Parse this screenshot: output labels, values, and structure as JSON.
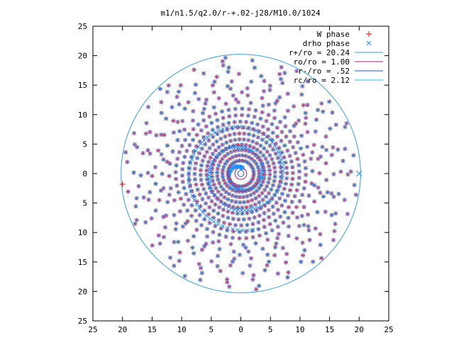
{
  "chart_data": {
    "type": "scatter",
    "title": "m1/n1.5/q2.0/r-+.02-j28/M10.0/1024",
    "xlabel": "",
    "ylabel": "",
    "xlim": [
      -25,
      25
    ],
    "ylim": [
      -25,
      25
    ],
    "x_tick_values": [
      -25,
      -20,
      -15,
      -10,
      -5,
      0,
      5,
      10,
      15,
      20,
      25
    ],
    "x_tick_labels": [
      "25",
      "20",
      "15",
      "10",
      "5",
      "0",
      "5",
      "10",
      "15",
      "20",
      "25"
    ],
    "y_tick_values": [
      25,
      20,
      15,
      10,
      5,
      0,
      -5,
      -10,
      -15,
      -20,
      -25
    ],
    "y_tick_labels": [
      "25",
      "20",
      "15",
      "10",
      "5",
      "0",
      "5",
      "10",
      "15",
      "20",
      "25"
    ],
    "grid": false,
    "legend_position": "top-right",
    "series": [
      {
        "name": "W phase",
        "kind": "points",
        "marker": "plus",
        "color": "#ff0000"
      },
      {
        "name": "drho phase",
        "kind": "points",
        "marker": "cross",
        "color": "#1e90ff"
      },
      {
        "name": "r+/ro = 20.24",
        "kind": "circle",
        "radius": 20.24,
        "color": "#3a9bd6"
      },
      {
        "name": "ro/ro = 1.00",
        "kind": "circle",
        "radius": 1.0,
        "color": "#a0208c"
      },
      {
        "name": "r-/ro = .52",
        "kind": "circle",
        "radius": 0.52,
        "color": "#2255cc"
      },
      {
        "name": "rc/ro = 2.12",
        "kind": "circle",
        "radius": 2.12,
        "color": "#22c0d0"
      }
    ],
    "point_pattern": {
      "rings": [
        2.2,
        3.1,
        4.0,
        4.9,
        5.8,
        6.8,
        7.8,
        8.8,
        9.9,
        11.0,
        12.1,
        13.3,
        14.5,
        15.7,
        16.9,
        18.1,
        19.3
      ],
      "points_per_ring": [
        30,
        34,
        40,
        44,
        48,
        52,
        54,
        56,
        58,
        60,
        36,
        34,
        32,
        30,
        28,
        26,
        24
      ],
      "spiral_pitch": 3.1,
      "arm_points_per_ring": [
        0,
        0,
        0,
        0,
        0,
        0,
        0,
        0,
        0,
        0,
        14,
        14,
        13,
        12,
        12,
        11,
        10
      ]
    }
  }
}
